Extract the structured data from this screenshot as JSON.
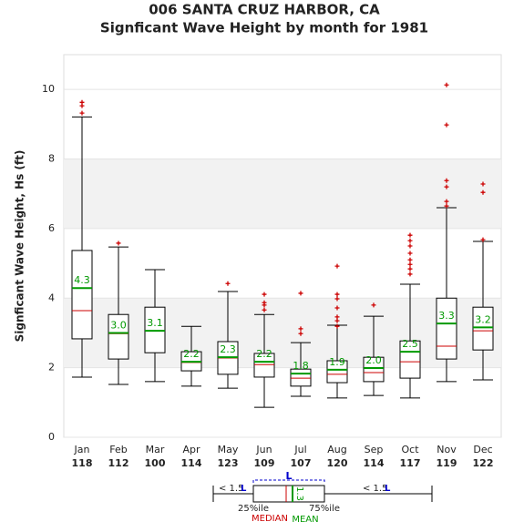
{
  "chart_data": {
    "type": "box",
    "title": "006   SANTA CRUZ HARBOR, CA",
    "subtitle": "Signficant Wave Height by month for 1981",
    "y_label": "Signficant Wave Height, Hs (ft)",
    "categories": [
      "Jan",
      "Feb",
      "Mar",
      "Apr",
      "May",
      "Jun",
      "Jul",
      "Aug",
      "Sep",
      "Oct",
      "Nov",
      "Dec"
    ],
    "counts": [
      118,
      112,
      100,
      114,
      123,
      109,
      107,
      120,
      114,
      117,
      119,
      122
    ],
    "whisker_low": [
      1.73,
      1.52,
      1.6,
      1.47,
      1.41,
      0.86,
      1.18,
      1.13,
      1.2,
      1.13,
      1.6,
      1.65
    ],
    "q1": [
      2.83,
      2.25,
      2.43,
      1.91,
      1.81,
      1.73,
      1.47,
      1.57,
      1.6,
      1.7,
      2.25,
      2.51
    ],
    "median": [
      3.64,
      2.98,
      3.06,
      2.15,
      2.28,
      2.09,
      1.7,
      1.81,
      1.86,
      2.17,
      2.62,
      3.06
    ],
    "mean": [
      4.29,
      3.0,
      3.06,
      2.17,
      2.3,
      2.17,
      1.83,
      1.94,
      1.99,
      2.46,
      3.27,
      3.16
    ],
    "value_labels": [
      "4.3",
      "3.0",
      "3.1",
      "2.2",
      "2.3",
      "2.2",
      "1.8",
      "1.9",
      "2.0",
      "2.5",
      "3.3",
      "3.2"
    ],
    "q3": [
      5.37,
      3.53,
      3.74,
      2.46,
      2.75,
      2.41,
      1.96,
      2.2,
      2.3,
      2.77,
      4.0,
      3.74
    ],
    "whisker_high": [
      9.21,
      5.47,
      4.82,
      3.19,
      4.19,
      3.53,
      2.72,
      3.22,
      3.48,
      4.4,
      6.6,
      5.63
    ],
    "outliers": [
      [
        9.63,
        9.53,
        9.32
      ],
      [
        5.58
      ],
      [],
      [],
      [
        4.42
      ],
      [
        4.11,
        3.87,
        3.8,
        3.66
      ],
      [
        4.14,
        3.12,
        2.98
      ],
      [
        4.92,
        4.11,
        3.98,
        3.72,
        3.46,
        3.35,
        3.19
      ],
      [
        3.8
      ],
      [
        5.81,
        5.65,
        5.5,
        5.29,
        5.1,
        4.97,
        4.84,
        4.69
      ],
      [
        10.13,
        8.98,
        7.38,
        7.2,
        6.78,
        6.65
      ],
      [
        7.28,
        7.04,
        5.68
      ]
    ],
    "ylim": [
      0,
      11
    ],
    "yticks": [
      0,
      2,
      4,
      6,
      8,
      10
    ],
    "bands": [
      [
        2,
        4
      ],
      [
        6,
        8
      ]
    ],
    "grid": true,
    "box_color": "#000000",
    "median_color": "#cc0000",
    "mean_color": "#009900",
    "outlier_color": "#cc0000",
    "legend_key": {
      "left_label": "< 1.5",
      "right_label": "< 1.5",
      "iqr_symbol": "L",
      "q1_label": "25%ile",
      "q3_label": "75%ile",
      "median_label": "MEDIAN",
      "mean_label": "MEAN",
      "mean_sample": "1.3"
    }
  }
}
